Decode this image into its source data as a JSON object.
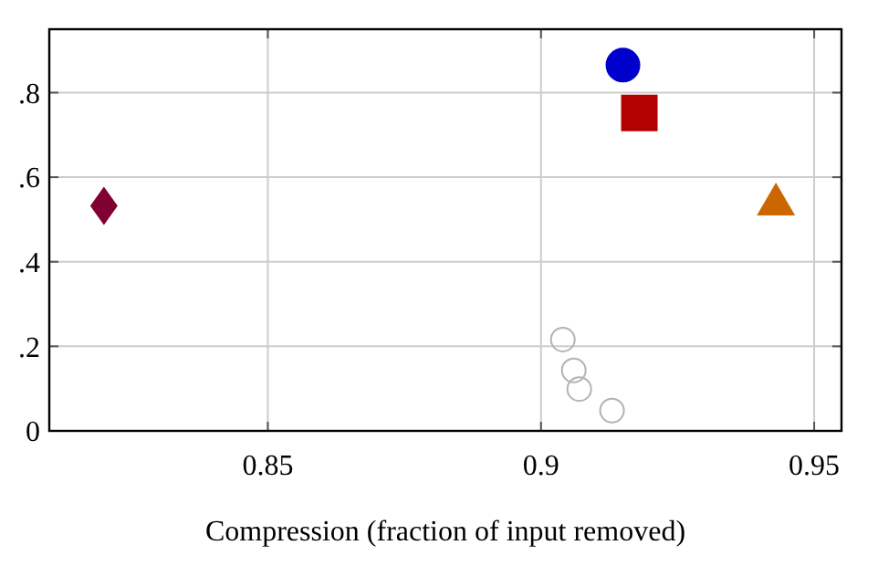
{
  "chart_data": {
    "type": "scatter",
    "xlabel": "Compression (fraction of input removed)",
    "xlim": [
      0.81,
      0.955
    ],
    "xticks": [
      0.85,
      0.9,
      0.95
    ],
    "ylim": [
      0,
      0.95
    ],
    "yticks": [
      0,
      {
        "value": 0.2,
        "label": ".2"
      },
      {
        "value": 0.4,
        "label": ".4"
      },
      {
        "value": 0.6,
        "label": ".6"
      },
      {
        "value": 0.8,
        "label": ".8"
      }
    ],
    "grid": true,
    "series": [
      {
        "color": "#800033",
        "marker": "diamond",
        "x": [
          0.82
        ],
        "values": [
          0.532
        ]
      },
      {
        "color": "#0000cc",
        "marker": "circle",
        "x": [
          0.915
        ],
        "values": [
          0.865
        ]
      },
      {
        "color": "#b30000",
        "marker": "square",
        "x": [
          0.918
        ],
        "values": [
          0.752
        ]
      },
      {
        "color": "#cc6600",
        "marker": "triangle",
        "x": [
          0.943
        ],
        "values": [
          0.54
        ]
      },
      {
        "color": "#b3b3b3",
        "marker": "circle",
        "x": [
          0.904,
          0.906,
          0.907,
          0.913
        ],
        "values": [
          0.216,
          0.143,
          0.099,
          0.048
        ]
      }
    ]
  }
}
